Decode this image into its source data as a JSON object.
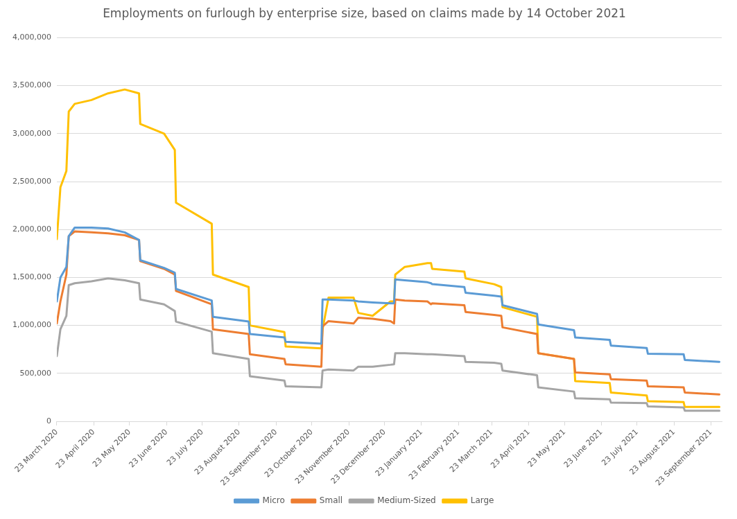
{
  "chart_data": {
    "type": "line",
    "title": "Employments on furlough by enterprise size, based on claims made by 14 October 2021",
    "x": [
      "2020-03-23",
      "2020-03-26",
      "2020-03-31",
      "2020-04-02",
      "2020-04-07",
      "2020-04-21",
      "2020-05-05",
      "2020-05-19",
      "2020-05-31",
      "2020-06-01",
      "2020-06-21",
      "2020-06-30",
      "2020-07-01",
      "2020-07-31",
      "2020-08-01",
      "2020-08-31",
      "2020-09-01",
      "2020-09-30",
      "2020-10-01",
      "2020-10-31",
      "2020-11-01",
      "2020-11-06",
      "2020-11-27",
      "2020-12-01",
      "2020-12-13",
      "2020-12-28",
      "2020-12-31",
      "2021-01-01",
      "2021-01-09",
      "2021-01-28",
      "2021-01-31",
      "2021-02-01",
      "2021-02-28",
      "2021-03-01",
      "2021-03-25",
      "2021-03-31",
      "2021-04-01",
      "2021-04-30",
      "2021-05-01",
      "2021-05-31",
      "2021-06-01",
      "2021-06-30",
      "2021-07-01",
      "2021-07-31",
      "2021-08-01",
      "2021-08-31",
      "2021-09-01",
      "2021-09-30"
    ],
    "series": [
      {
        "name": "Micro",
        "color": "#5b9bd5",
        "values": [
          1250000,
          1500000,
          1610000,
          1930000,
          2020000,
          2020000,
          2010000,
          1970000,
          1890000,
          1680000,
          1600000,
          1550000,
          1380000,
          1260000,
          1090000,
          1040000,
          910000,
          875000,
          830000,
          810000,
          1270000,
          1270000,
          1260000,
          1250000,
          1240000,
          1230000,
          1230000,
          1480000,
          1470000,
          1450000,
          1440000,
          1430000,
          1400000,
          1340000,
          1310000,
          1300000,
          1210000,
          1120000,
          1010000,
          950000,
          875000,
          850000,
          790000,
          765000,
          705000,
          700000,
          640000,
          620000
        ]
      },
      {
        "name": "Small",
        "color": "#ed7d31",
        "values": [
          1020000,
          1250000,
          1530000,
          1930000,
          1980000,
          1970000,
          1960000,
          1940000,
          1890000,
          1670000,
          1590000,
          1530000,
          1360000,
          1220000,
          960000,
          910000,
          700000,
          650000,
          595000,
          570000,
          990000,
          1045000,
          1020000,
          1080000,
          1070000,
          1045000,
          1020000,
          1270000,
          1260000,
          1250000,
          1220000,
          1230000,
          1210000,
          1140000,
          1110000,
          1100000,
          980000,
          910000,
          710000,
          650000,
          510000,
          490000,
          440000,
          425000,
          365000,
          355000,
          300000,
          280000
        ]
      },
      {
        "name": "Medium-Sized",
        "color": "#a5a5a5",
        "values": [
          680000,
          960000,
          1100000,
          1420000,
          1440000,
          1460000,
          1490000,
          1470000,
          1440000,
          1270000,
          1220000,
          1150000,
          1040000,
          935000,
          710000,
          650000,
          470000,
          425000,
          365000,
          355000,
          530000,
          540000,
          530000,
          570000,
          570000,
          590000,
          595000,
          710000,
          710000,
          700000,
          700000,
          700000,
          680000,
          620000,
          610000,
          600000,
          530000,
          480000,
          355000,
          310000,
          240000,
          230000,
          195000,
          190000,
          155000,
          145000,
          110000,
          110000
        ]
      },
      {
        "name": "Large",
        "color": "#ffc000",
        "values": [
          1900000,
          2440000,
          2610000,
          3230000,
          3310000,
          3350000,
          3420000,
          3460000,
          3420000,
          3100000,
          3000000,
          2830000,
          2280000,
          2060000,
          1530000,
          1400000,
          1000000,
          930000,
          780000,
          760000,
          960000,
          1290000,
          1290000,
          1130000,
          1100000,
          1250000,
          1250000,
          1530000,
          1610000,
          1650000,
          1650000,
          1590000,
          1560000,
          1490000,
          1430000,
          1400000,
          1190000,
          1090000,
          710000,
          650000,
          420000,
          400000,
          300000,
          270000,
          210000,
          200000,
          150000,
          150000
        ]
      }
    ],
    "xlim": [
      "2020-03-23",
      "2021-10-02"
    ],
    "xticks": [
      {
        "value": "2020-03-23",
        "label": "23 March 2020"
      },
      {
        "value": "2020-04-23",
        "label": "23 April 2020"
      },
      {
        "value": "2020-05-23",
        "label": "23 May 2020"
      },
      {
        "value": "2020-06-23",
        "label": "23 June 2020"
      },
      {
        "value": "2020-07-23",
        "label": "23 July 2020"
      },
      {
        "value": "2020-08-23",
        "label": "23 August 2020"
      },
      {
        "value": "2020-09-23",
        "label": "23 September 2020"
      },
      {
        "value": "2020-10-23",
        "label": "23 October 2020"
      },
      {
        "value": "2020-11-23",
        "label": "23 November 2020"
      },
      {
        "value": "2020-12-23",
        "label": "23 December 2020"
      },
      {
        "value": "2021-01-23",
        "label": "23 January 2021"
      },
      {
        "value": "2021-02-23",
        "label": "23 February 2021"
      },
      {
        "value": "2021-03-23",
        "label": "23 March 2021"
      },
      {
        "value": "2021-04-23",
        "label": "23 April 2021"
      },
      {
        "value": "2021-05-23",
        "label": "23 May 2021"
      },
      {
        "value": "2021-06-23",
        "label": "23 June 2021"
      },
      {
        "value": "2021-07-23",
        "label": "23 July 2021"
      },
      {
        "value": "2021-08-23",
        "label": "23 August 2021"
      },
      {
        "value": "2021-09-23",
        "label": "23 September 2021"
      }
    ],
    "ylim": [
      0,
      4000000
    ],
    "yticks": [
      0,
      {
        "value": 500000,
        "label": "500,000"
      },
      {
        "value": 1000000,
        "label": "1,000,000"
      },
      {
        "value": 1500000,
        "label": "1,500,000"
      },
      {
        "value": 2000000,
        "label": "2,000,000"
      },
      {
        "value": 2500000,
        "label": "2,500,000"
      },
      {
        "value": 3000000,
        "label": "3,000,000"
      },
      {
        "value": 3500000,
        "label": "3,500,000"
      },
      {
        "value": 4000000,
        "label": "4,000,000"
      }
    ],
    "grid": "y",
    "legend": "bottom",
    "marker": "none",
    "line_style": "solid"
  }
}
